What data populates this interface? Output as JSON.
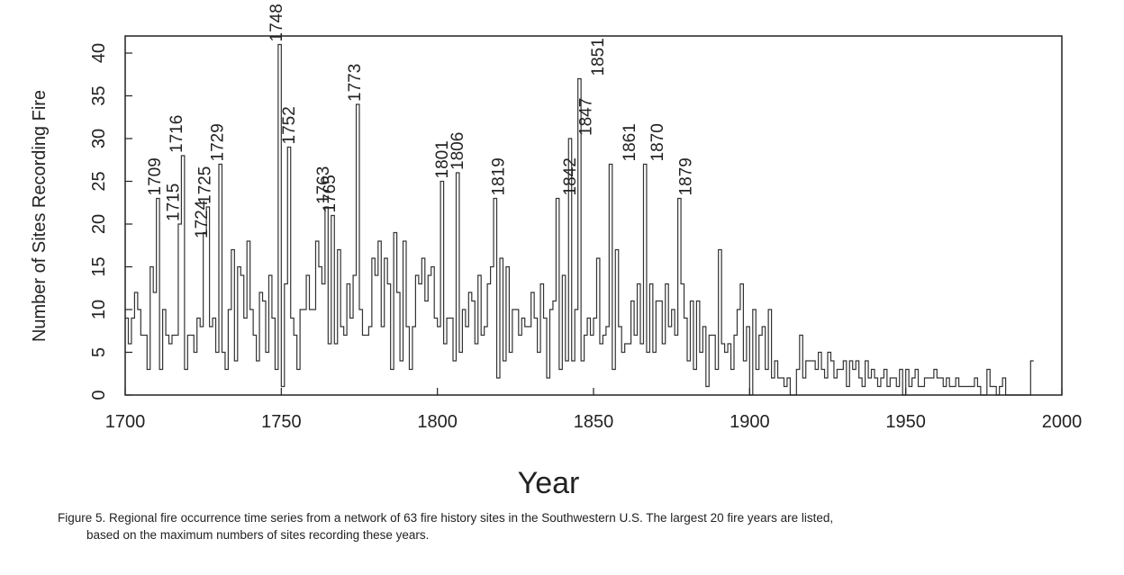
{
  "chart_data": {
    "type": "line",
    "xlabel": "Year",
    "ylabel": "Number of Sites Recording Fire",
    "xlim": [
      1700,
      2000
    ],
    "ylim": [
      0,
      42
    ],
    "x_ticks": [
      1700,
      1750,
      1800,
      1850,
      1900,
      1950,
      2000
    ],
    "y_ticks": [
      0,
      5,
      10,
      15,
      20,
      25,
      30,
      35,
      40
    ],
    "grid": false,
    "step": true,
    "series": [
      {
        "x": [
          1700,
          1701,
          1702,
          1703,
          1704,
          1705,
          1706,
          1707,
          1708,
          1709,
          1710,
          1711,
          1712,
          1713,
          1714,
          1715,
          1716,
          1717,
          1718,
          1719,
          1720,
          1721,
          1722,
          1723,
          1724,
          1725,
          1726,
          1727,
          1728,
          1729,
          1730,
          1731,
          1732,
          1733,
          1734,
          1735,
          1736,
          1737,
          1738,
          1739,
          1740,
          1741,
          1742,
          1743,
          1744,
          1745,
          1746,
          1747,
          1748,
          1749,
          1750,
          1751,
          1752,
          1753,
          1754,
          1755,
          1756,
          1757,
          1758,
          1759,
          1760,
          1761,
          1762,
          1763,
          1764,
          1765,
          1766,
          1767,
          1768,
          1769,
          1770,
          1771,
          1772,
          1773,
          1774,
          1775,
          1776,
          1777,
          1778,
          1779,
          1780,
          1781,
          1782,
          1783,
          1784,
          1785,
          1786,
          1787,
          1788,
          1789,
          1790,
          1791,
          1792,
          1793,
          1794,
          1795,
          1796,
          1797,
          1798,
          1799,
          1800,
          1801,
          1802,
          1803,
          1804,
          1805,
          1806,
          1807,
          1808,
          1809,
          1810,
          1811,
          1812,
          1813,
          1814,
          1815,
          1816,
          1817,
          1818,
          1819,
          1820,
          1821,
          1822,
          1823,
          1824,
          1825,
          1826,
          1827,
          1828,
          1829,
          1830,
          1831,
          1832,
          1833,
          1834,
          1835,
          1836,
          1837,
          1838,
          1839,
          1840,
          1841,
          1842,
          1843,
          1844,
          1845,
          1846,
          1847,
          1848,
          1849,
          1850,
          1851,
          1852,
          1853,
          1854,
          1855,
          1856,
          1857,
          1858,
          1859,
          1860,
          1861,
          1862,
          1863,
          1864,
          1865,
          1866,
          1867,
          1868,
          1869,
          1870,
          1871,
          1872,
          1873,
          1874,
          1875,
          1876,
          1877,
          1878,
          1879,
          1880,
          1881,
          1882,
          1883,
          1884,
          1885,
          1886,
          1887,
          1888,
          1889,
          1890,
          1891,
          1892,
          1893,
          1894,
          1895,
          1896,
          1897,
          1898,
          1899,
          1900,
          1901,
          1902,
          1903,
          1904,
          1905,
          1906,
          1907,
          1908,
          1909,
          1910,
          1911,
          1912,
          1913,
          1914,
          1915,
          1916,
          1917,
          1918,
          1919,
          1920,
          1921,
          1922,
          1923,
          1924,
          1925,
          1926,
          1927,
          1928,
          1929,
          1930,
          1931,
          1932,
          1933,
          1934,
          1935,
          1936,
          1937,
          1938,
          1939,
          1940,
          1941,
          1942,
          1943,
          1944,
          1945,
          1946,
          1947,
          1948,
          1949,
          1950,
          1951,
          1952,
          1953,
          1954,
          1955,
          1956,
          1957,
          1958,
          1959,
          1960,
          1961,
          1962,
          1963,
          1964,
          1965,
          1966,
          1967,
          1968,
          1969,
          1970,
          1971,
          1972,
          1973,
          1974,
          1975,
          1976,
          1977,
          1978,
          1979,
          1980,
          1981,
          1982,
          1983,
          1984,
          1985,
          1986,
          1987,
          1988,
          1989,
          1990
        ],
        "y": [
          9,
          6,
          9,
          12,
          10,
          7,
          7,
          3,
          15,
          12,
          23,
          3,
          10,
          7,
          6,
          7,
          7,
          20,
          28,
          3,
          7,
          7,
          5,
          9,
          8,
          19,
          22,
          8,
          9,
          5,
          27,
          5,
          3,
          10,
          17,
          4,
          15,
          14,
          9,
          18,
          10,
          7,
          4,
          12,
          11,
          5,
          14,
          9,
          3,
          41,
          1,
          13,
          29,
          9,
          7,
          3,
          10,
          10,
          14,
          10,
          10,
          18,
          15,
          13,
          22,
          6,
          21,
          6,
          17,
          8,
          7,
          13,
          9,
          14,
          34,
          10,
          7,
          7,
          8,
          16,
          14,
          18,
          8,
          16,
          13,
          3,
          19,
          12,
          4,
          18,
          8,
          3,
          8,
          14,
          13,
          16,
          11,
          14,
          15,
          9,
          8,
          25,
          6,
          9,
          9,
          4,
          26,
          5,
          10,
          8,
          12,
          11,
          6,
          14,
          7,
          8,
          13,
          15,
          23,
          2,
          16,
          4,
          15,
          5,
          10,
          10,
          7,
          9,
          8,
          8,
          12,
          9,
          5,
          13,
          9,
          2,
          10,
          11,
          23,
          3,
          14,
          4,
          30,
          4,
          10,
          37,
          4,
          7,
          9,
          7,
          9,
          16,
          6,
          7,
          8,
          27,
          3,
          17,
          8,
          5,
          6,
          6,
          11,
          7,
          13,
          6,
          27,
          5,
          13,
          5,
          11,
          11,
          6,
          13,
          8,
          10,
          7,
          23,
          13,
          9,
          4,
          11,
          3,
          11,
          5,
          8,
          1,
          7,
          7,
          3,
          17,
          6,
          5,
          6,
          3,
          7,
          10,
          13,
          4,
          8,
          0,
          10,
          3,
          7,
          8,
          3,
          10,
          2,
          4,
          2,
          2,
          1,
          2,
          0,
          0,
          3,
          7,
          2,
          4,
          4,
          4,
          3,
          5,
          3,
          2,
          5,
          4,
          2,
          3,
          3,
          4,
          1,
          4,
          3,
          4,
          2,
          1,
          4,
          2,
          3,
          2,
          1,
          2,
          3,
          1,
          2,
          2,
          1,
          3,
          0,
          3,
          1,
          2,
          3,
          1,
          1,
          2,
          2,
          2,
          3,
          2,
          2,
          1,
          2,
          1,
          1,
          2,
          1,
          1,
          1,
          1,
          1,
          2,
          1,
          0,
          0,
          3,
          1,
          1,
          0,
          1,
          2,
          0,
          0,
          0,
          0,
          0,
          0,
          0,
          0,
          4
        ]
      }
    ],
    "annotations": [
      {
        "x": 1709,
        "y": 23,
        "text": "1709"
      },
      {
        "x": 1715,
        "y": 20,
        "text": "1715"
      },
      {
        "x": 1716,
        "y": 28,
        "text": "1716"
      },
      {
        "x": 1724,
        "y": 18,
        "text": "1724"
      },
      {
        "x": 1725,
        "y": 22,
        "text": "1725"
      },
      {
        "x": 1729,
        "y": 27,
        "text": "1729"
      },
      {
        "x": 1748,
        "y": 41,
        "text": "1748"
      },
      {
        "x": 1752,
        "y": 29,
        "text": "1752"
      },
      {
        "x": 1763,
        "y": 22,
        "text": "1763"
      },
      {
        "x": 1765,
        "y": 21,
        "text": "1765"
      },
      {
        "x": 1773,
        "y": 34,
        "text": "1773"
      },
      {
        "x": 1801,
        "y": 25,
        "text": "1801"
      },
      {
        "x": 1806,
        "y": 26,
        "text": "1806"
      },
      {
        "x": 1819,
        "y": 23,
        "text": "1819"
      },
      {
        "x": 1842,
        "y": 23,
        "text": "1842"
      },
      {
        "x": 1847,
        "y": 30,
        "text": "1847"
      },
      {
        "x": 1851,
        "y": 37,
        "text": "1851"
      },
      {
        "x": 1861,
        "y": 27,
        "text": "1861"
      },
      {
        "x": 1870,
        "y": 27,
        "text": "1870"
      },
      {
        "x": 1879,
        "y": 23,
        "text": "1879"
      }
    ],
    "colors": {
      "line": "#333333",
      "axis": "#222222",
      "text": "#222222"
    }
  },
  "caption": {
    "line1": "Figure 5. Regional fire occurrence time series from  a network of 63 fire history sites in the Southwestern U.S. The largest 20 fire years are listed,",
    "line2": "based on the maximum numbers of sites recording these years."
  }
}
